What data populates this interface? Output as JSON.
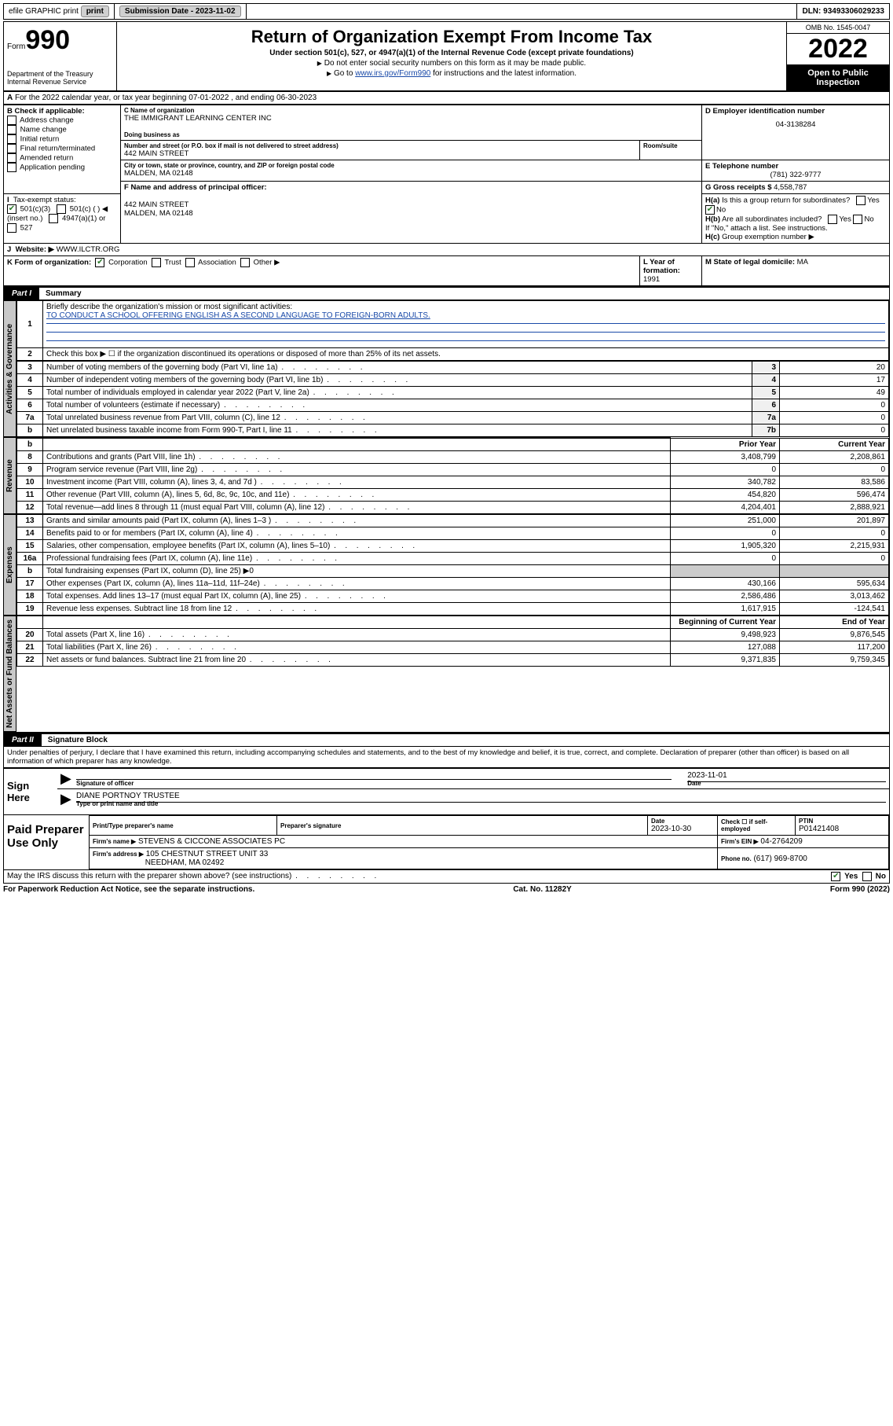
{
  "topbar": {
    "efile": "efile GRAPHIC print",
    "subdate_label": "Submission Date - 2023-11-02",
    "dln": "DLN: 93493306029233"
  },
  "header": {
    "form_label": "Form",
    "form_no": "990",
    "dept": "Department of the Treasury",
    "irs": "Internal Revenue Service",
    "title": "Return of Organization Exempt From Income Tax",
    "subtitle": "Under section 501(c), 527, or 4947(a)(1) of the Internal Revenue Code (except private foundations)",
    "note1": "Do not enter social security numbers on this form as it may be made public.",
    "note2_pre": "Go to ",
    "note2_link": "www.irs.gov/Form990",
    "note2_post": " for instructions and the latest information.",
    "omb": "OMB No. 1545-0047",
    "year": "2022",
    "open": "Open to Public Inspection"
  },
  "lineA": "For the 2022 calendar year, or tax year beginning 07-01-2022   , and ending 06-30-2023",
  "boxB": {
    "label": "B Check if applicable:",
    "opts": [
      "Address change",
      "Name change",
      "Initial return",
      "Final return/terminated",
      "Amended return",
      "Application pending"
    ]
  },
  "boxC": {
    "label": "C Name of organization",
    "name": "THE IMMIGRANT LEARNING CENTER INC",
    "dba_label": "Doing business as",
    "addr_label": "Number and street (or P.O. box if mail is not delivered to street address)",
    "room_label": "Room/suite",
    "addr": "442 MAIN STREET",
    "city_label": "City or town, state or province, country, and ZIP or foreign postal code",
    "city": "MALDEN, MA  02148"
  },
  "boxD": {
    "label": "D Employer identification number",
    "value": "04-3138284"
  },
  "boxE": {
    "label": "E Telephone number",
    "value": "(781) 322-9777"
  },
  "boxG": {
    "label": "G Gross receipts $",
    "value": "4,558,787"
  },
  "boxF": {
    "label": "F  Name and address of principal officer:",
    "line1": "442 MAIN STREET",
    "line2": "MALDEN, MA  02148"
  },
  "boxH": {
    "ha": "Is this a group return for subordinates?",
    "hb": "Are all subordinates included?",
    "hnote": "If \"No,\" attach a list. See instructions.",
    "hc": "Group exemption number ▶"
  },
  "boxI": {
    "label": "Tax-exempt status:",
    "o1": "501(c)(3)",
    "o2": "501(c) (  ) ◀ (insert no.)",
    "o3": "4947(a)(1) or",
    "o4": "527"
  },
  "boxJ": {
    "label": "Website: ▶",
    "value": "WWW.ILCTR.ORG"
  },
  "boxK": {
    "label": "K Form of organization:",
    "opts": [
      "Corporation",
      "Trust",
      "Association",
      "Other ▶"
    ]
  },
  "boxL": {
    "label": "L Year of formation:",
    "value": "1991"
  },
  "boxM": {
    "label": "M State of legal domicile:",
    "value": "MA"
  },
  "part1": {
    "tab": "Part I",
    "title": "Summary",
    "l1a": "Briefly describe the organization's mission or most significant activities:",
    "l1b": "TO CONDUCT A SCHOOL OFFERING ENGLISH AS A SECOND LANGUAGE TO FOREIGN-BORN ADULTS.",
    "l2": "Check this box ▶ ☐  if the organization discontinued its operations or disposed of more than 25% of its net assets.",
    "rows_gov": [
      {
        "n": "3",
        "t": "Number of voting members of the governing body (Part VI, line 1a)",
        "ln": "3",
        "v": "20"
      },
      {
        "n": "4",
        "t": "Number of independent voting members of the governing body (Part VI, line 1b)",
        "ln": "4",
        "v": "17"
      },
      {
        "n": "5",
        "t": "Total number of individuals employed in calendar year 2022 (Part V, line 2a)",
        "ln": "5",
        "v": "49"
      },
      {
        "n": "6",
        "t": "Total number of volunteers (estimate if necessary)",
        "ln": "6",
        "v": "0"
      },
      {
        "n": "7a",
        "t": "Total unrelated business revenue from Part VIII, column (C), line 12",
        "ln": "7a",
        "v": "0"
      },
      {
        "n": "b",
        "t": "Net unrelated business taxable income from Form 990-T, Part I, line 11",
        "ln": "7b",
        "v": "0"
      }
    ],
    "prior_hdr": "Prior Year",
    "curr_hdr": "Current Year",
    "rows_rev": [
      {
        "n": "8",
        "t": "Contributions and grants (Part VIII, line 1h)",
        "p": "3,408,799",
        "c": "2,208,861"
      },
      {
        "n": "9",
        "t": "Program service revenue (Part VIII, line 2g)",
        "p": "0",
        "c": "0"
      },
      {
        "n": "10",
        "t": "Investment income (Part VIII, column (A), lines 3, 4, and 7d )",
        "p": "340,782",
        "c": "83,586"
      },
      {
        "n": "11",
        "t": "Other revenue (Part VIII, column (A), lines 5, 6d, 8c, 9c, 10c, and 11e)",
        "p": "454,820",
        "c": "596,474"
      },
      {
        "n": "12",
        "t": "Total revenue—add lines 8 through 11 (must equal Part VIII, column (A), line 12)",
        "p": "4,204,401",
        "c": "2,888,921"
      }
    ],
    "rows_exp": [
      {
        "n": "13",
        "t": "Grants and similar amounts paid (Part IX, column (A), lines 1–3 )",
        "p": "251,000",
        "c": "201,897"
      },
      {
        "n": "14",
        "t": "Benefits paid to or for members (Part IX, column (A), line 4)",
        "p": "0",
        "c": "0"
      },
      {
        "n": "15",
        "t": "Salaries, other compensation, employee benefits (Part IX, column (A), lines 5–10)",
        "p": "1,905,320",
        "c": "2,215,931"
      },
      {
        "n": "16a",
        "t": "Professional fundraising fees (Part IX, column (A), line 11e)",
        "p": "0",
        "c": "0"
      },
      {
        "n": "b",
        "t": "Total fundraising expenses (Part IX, column (D), line 25) ▶0",
        "p": "",
        "c": "",
        "nb": true
      },
      {
        "n": "17",
        "t": "Other expenses (Part IX, column (A), lines 11a–11d, 11f–24e)",
        "p": "430,166",
        "c": "595,634"
      },
      {
        "n": "18",
        "t": "Total expenses. Add lines 13–17 (must equal Part IX, column (A), line 25)",
        "p": "2,586,486",
        "c": "3,013,462"
      },
      {
        "n": "19",
        "t": "Revenue less expenses. Subtract line 18 from line 12",
        "p": "1,617,915",
        "c": "-124,541"
      }
    ],
    "beg_hdr": "Beginning of Current Year",
    "end_hdr": "End of Year",
    "rows_net": [
      {
        "n": "20",
        "t": "Total assets (Part X, line 16)",
        "p": "9,498,923",
        "c": "9,876,545"
      },
      {
        "n": "21",
        "t": "Total liabilities (Part X, line 26)",
        "p": "127,088",
        "c": "117,200"
      },
      {
        "n": "22",
        "t": "Net assets or fund balances. Subtract line 21 from line 20",
        "p": "9,371,835",
        "c": "9,759,345"
      }
    ],
    "tabs": {
      "gov": "Activities & Governance",
      "rev": "Revenue",
      "exp": "Expenses",
      "net": "Net Assets or Fund Balances"
    }
  },
  "part2": {
    "tab": "Part II",
    "title": "Signature Block",
    "decl": "Under penalties of perjury, I declare that I have examined this return, including accompanying schedules and statements, and to the best of my knowledge and belief, it is true, correct, and complete. Declaration of preparer (other than officer) is based on all information of which preparer has any knowledge."
  },
  "sign": {
    "here": "Sign Here",
    "sig_label": "Signature of officer",
    "date_label": "Date",
    "date": "2023-11-01",
    "name": "DIANE PORTNOY TRUSTEE",
    "name_label": "Type or print name and title"
  },
  "paid": {
    "label": "Paid Preparer Use Only",
    "h1": "Print/Type preparer's name",
    "h2": "Preparer's signature",
    "h3": "Date",
    "date": "2023-10-30",
    "h4": "Check ☐ if self-employed",
    "h5": "PTIN",
    "ptin": "P01421408",
    "firm_label": "Firm's name    ▶",
    "firm": "STEVENS & CICCONE ASSOCIATES PC",
    "ein_label": "Firm's EIN ▶",
    "ein": "04-2764209",
    "addr_label": "Firm's address ▶",
    "addr1": "105 CHESTNUT STREET UNIT 33",
    "addr2": "NEEDHAM, MA  02492",
    "phone_label": "Phone no.",
    "phone": "(617) 969-8700"
  },
  "discuss": "May the IRS discuss this return with the preparer shown above? (see instructions)",
  "footer": {
    "left": "For Paperwork Reduction Act Notice, see the separate instructions.",
    "mid": "Cat. No. 11282Y",
    "right": "Form 990 (2022)"
  }
}
